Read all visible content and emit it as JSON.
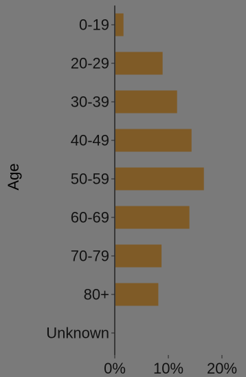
{
  "chart_data": {
    "type": "bar",
    "orientation": "horizontal",
    "categories": [
      "0-19",
      "20-29",
      "30-39",
      "40-49",
      "50-59",
      "60-69",
      "70-79",
      "80+",
      "Unknown"
    ],
    "values": [
      1.5,
      8.8,
      11.5,
      14.2,
      16.5,
      13.8,
      8.6,
      8.0,
      0.0
    ],
    "value_unit": "%",
    "xlim": [
      0,
      22
    ],
    "x_ticks": [
      0,
      10,
      20
    ],
    "x_tick_labels": [
      "0%",
      "10%",
      "20%"
    ],
    "ylabel": "Age",
    "xlabel": "",
    "grid": false,
    "colors": {
      "bar": "#7f5b27",
      "background": "#7a7a7a",
      "axis": "#222222",
      "text": "#111111"
    }
  }
}
